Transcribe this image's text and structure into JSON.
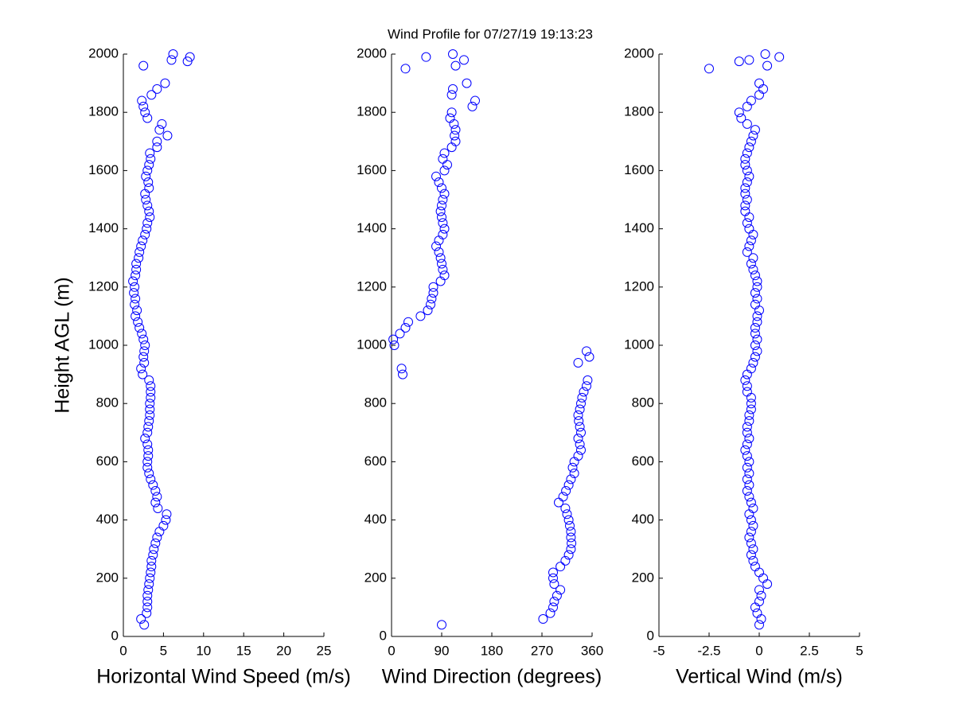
{
  "chart_data": [
    {
      "type": "scatter",
      "ylabel": "Height AGL (m)",
      "xlabel": "Horizontal Wind Speed (m/s)",
      "color": "#0000ff",
      "xlim": [
        0,
        25
      ],
      "xticks": [
        0,
        5,
        10,
        15,
        20,
        25
      ],
      "ylim": [
        0,
        2000
      ],
      "yticks": [
        0,
        200,
        400,
        600,
        800,
        1000,
        1200,
        1400,
        1600,
        1800,
        2000
      ],
      "x": [
        2.6,
        2.2,
        2.9,
        3.0,
        3.0,
        3.0,
        3.1,
        3.2,
        3.3,
        3.4,
        3.5,
        3.5,
        3.7,
        3.8,
        4.0,
        4.2,
        4.5,
        5.0,
        5.3,
        5.4,
        4.3,
        4.0,
        4.2,
        4.0,
        3.7,
        3.4,
        3.2,
        3.0,
        3.0,
        3.1,
        3.1,
        3.0,
        2.7,
        3.0,
        3.1,
        3.2,
        3.3,
        3.3,
        3.3,
        3.4,
        3.4,
        3.4,
        3.2,
        2.4,
        2.2,
        2.6,
        2.5,
        2.6,
        2.7,
        2.5,
        2.3,
        2.0,
        1.8,
        1.5,
        1.7,
        1.4,
        1.5,
        1.3,
        1.4,
        1.2,
        1.5,
        1.6,
        1.6,
        1.9,
        2.0,
        2.2,
        2.4,
        2.7,
        2.9,
        3.0,
        3.3,
        3.2,
        3.0,
        2.8,
        2.7,
        3.2,
        3.1,
        2.8,
        3.0,
        3.2,
        3.4,
        3.3,
        4.2,
        4.2,
        5.5,
        4.5,
        4.8,
        3.0,
        2.7,
        2.5,
        2.3,
        3.5,
        4.2,
        5.2,
        2.5,
        8.0,
        6.0,
        8.3,
        6.2
      ],
      "y": [
        40,
        60,
        80,
        100,
        120,
        140,
        160,
        180,
        200,
        220,
        240,
        260,
        280,
        300,
        320,
        340,
        360,
        380,
        400,
        420,
        440,
        460,
        480,
        500,
        520,
        540,
        560,
        580,
        600,
        620,
        640,
        660,
        680,
        700,
        720,
        740,
        760,
        780,
        800,
        820,
        840,
        860,
        880,
        900,
        920,
        940,
        960,
        980,
        1000,
        1020,
        1040,
        1060,
        1080,
        1100,
        1120,
        1140,
        1160,
        1180,
        1200,
        1220,
        1240,
        1260,
        1280,
        1300,
        1320,
        1340,
        1360,
        1380,
        1400,
        1420,
        1440,
        1460,
        1480,
        1500,
        1520,
        1540,
        1560,
        1580,
        1600,
        1620,
        1640,
        1660,
        1680,
        1700,
        1720,
        1740,
        1760,
        1780,
        1800,
        1820,
        1840,
        1860,
        1880,
        1900,
        1960,
        1975,
        1980,
        1990,
        2000
      ]
    },
    {
      "type": "scatter",
      "title": "Wind Profile for  07/27/19 19:13:23",
      "xlabel": "Wind Direction (degrees)",
      "color": "#0000ff",
      "xlim": [
        0,
        360
      ],
      "xticks": [
        0,
        90,
        180,
        270,
        360
      ],
      "ylim": [
        0,
        2000
      ],
      "yticks": [
        0,
        200,
        400,
        600,
        800,
        1000,
        1200,
        1400,
        1600,
        1800,
        2000
      ],
      "x": [
        90,
        272,
        285,
        290,
        292,
        297,
        303,
        292,
        290,
        290,
        303,
        312,
        318,
        322,
        323,
        322,
        322,
        320,
        318,
        315,
        312,
        300,
        308,
        313,
        318,
        322,
        328,
        325,
        328,
        335,
        340,
        338,
        335,
        340,
        338,
        336,
        335,
        338,
        340,
        342,
        345,
        350,
        352,
        20,
        18,
        335,
        355,
        350,
        5,
        3,
        15,
        25,
        30,
        52,
        65,
        70,
        72,
        75,
        75,
        88,
        95,
        92,
        90,
        88,
        85,
        80,
        85,
        92,
        95,
        92,
        90,
        88,
        90,
        92,
        95,
        90,
        85,
        80,
        95,
        100,
        92,
        95,
        108,
        115,
        113,
        115,
        112,
        105,
        108,
        145,
        150,
        108,
        110,
        135,
        25,
        115,
        130,
        62,
        110
      ],
      "y": [
        40,
        60,
        80,
        100,
        120,
        140,
        160,
        180,
        200,
        220,
        240,
        260,
        280,
        300,
        320,
        340,
        360,
        380,
        400,
        420,
        440,
        460,
        480,
        500,
        520,
        540,
        560,
        580,
        600,
        620,
        640,
        660,
        680,
        700,
        720,
        740,
        760,
        780,
        800,
        820,
        840,
        860,
        880,
        900,
        920,
        940,
        960,
        980,
        1000,
        1020,
        1040,
        1060,
        1080,
        1100,
        1120,
        1140,
        1160,
        1180,
        1200,
        1220,
        1240,
        1260,
        1280,
        1300,
        1320,
        1340,
        1360,
        1380,
        1400,
        1420,
        1440,
        1460,
        1480,
        1500,
        1520,
        1540,
        1560,
        1580,
        1600,
        1620,
        1640,
        1660,
        1680,
        1700,
        1720,
        1740,
        1760,
        1780,
        1800,
        1820,
        1840,
        1860,
        1880,
        1900,
        1950,
        1960,
        1980,
        1990,
        2000
      ]
    },
    {
      "type": "scatter",
      "xlabel": "Vertical Wind (m/s)",
      "color": "#0000ff",
      "xlim": [
        -5,
        5
      ],
      "xticks": [
        -5,
        -2.5,
        0,
        2.5,
        5
      ],
      "ylim": [
        0,
        2000
      ],
      "yticks": [
        0,
        200,
        400,
        600,
        800,
        1000,
        1200,
        1400,
        1600,
        1800,
        2000
      ],
      "x": [
        0,
        0.1,
        -0.1,
        -0.2,
        0,
        0.1,
        0,
        0.4,
        0.2,
        0,
        -0.2,
        -0.3,
        -0.4,
        -0.3,
        -0.4,
        -0.5,
        -0.4,
        -0.3,
        -0.4,
        -0.5,
        -0.3,
        -0.4,
        -0.5,
        -0.6,
        -0.5,
        -0.6,
        -0.5,
        -0.6,
        -0.5,
        -0.6,
        -0.7,
        -0.6,
        -0.5,
        -0.6,
        -0.6,
        -0.5,
        -0.5,
        -0.4,
        -0.4,
        -0.4,
        -0.6,
        -0.6,
        -0.7,
        -0.6,
        -0.4,
        -0.3,
        -0.2,
        -0.1,
        -0.2,
        -0.1,
        -0.2,
        -0.2,
        -0.1,
        -0.1,
        0,
        -0.2,
        -0.1,
        -0.2,
        -0.1,
        -0.1,
        -0.2,
        -0.3,
        -0.4,
        -0.3,
        -0.6,
        -0.5,
        -0.4,
        -0.3,
        -0.5,
        -0.6,
        -0.5,
        -0.7,
        -0.7,
        -0.6,
        -0.7,
        -0.7,
        -0.6,
        -0.5,
        -0.6,
        -0.7,
        -0.7,
        -0.6,
        -0.5,
        -0.4,
        -0.3,
        -0.2,
        -0.6,
        -0.9,
        -1.0,
        -0.6,
        -0.4,
        0,
        0.2,
        0,
        -2.5,
        0.4,
        -1.0,
        -0.5,
        1.0,
        0.3
      ],
      "y": [
        40,
        60,
        80,
        100,
        120,
        140,
        160,
        180,
        200,
        220,
        240,
        260,
        280,
        300,
        320,
        340,
        360,
        380,
        400,
        420,
        440,
        460,
        480,
        500,
        520,
        540,
        560,
        580,
        600,
        620,
        640,
        660,
        680,
        700,
        720,
        740,
        760,
        780,
        800,
        820,
        840,
        860,
        880,
        900,
        920,
        940,
        960,
        980,
        1000,
        1020,
        1040,
        1060,
        1080,
        1100,
        1120,
        1140,
        1160,
        1180,
        1200,
        1220,
        1240,
        1260,
        1280,
        1300,
        1320,
        1340,
        1360,
        1380,
        1400,
        1420,
        1440,
        1460,
        1480,
        1500,
        1520,
        1540,
        1560,
        1580,
        1600,
        1620,
        1640,
        1660,
        1680,
        1700,
        1720,
        1740,
        1760,
        1780,
        1800,
        1820,
        1840,
        1860,
        1880,
        1900,
        1950,
        1960,
        1975,
        1980,
        1990,
        2000
      ]
    }
  ]
}
